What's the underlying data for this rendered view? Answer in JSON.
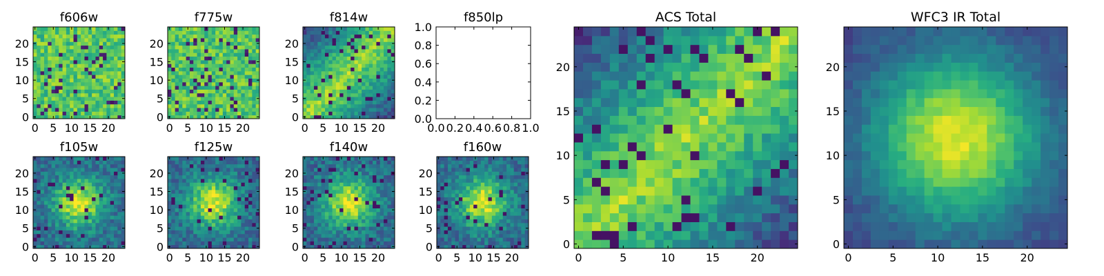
{
  "figure": {
    "description_free": true
  },
  "chart_data": [
    {
      "id": "f606w",
      "type": "heatmap",
      "title": "f606w",
      "x_ticks": [
        "0",
        "5",
        "10",
        "15",
        "20"
      ],
      "y_ticks": [
        "0",
        "5",
        "10",
        "15",
        "20"
      ],
      "grid_size": 25,
      "xlim": [
        0,
        25
      ],
      "ylim": [
        0,
        25
      ],
      "colormap": "viridis",
      "pattern": "flat",
      "seed": 11
    },
    {
      "id": "f775w",
      "type": "heatmap",
      "title": "f775w",
      "x_ticks": [
        "0",
        "5",
        "10",
        "15",
        "20"
      ],
      "y_ticks": [
        "0",
        "5",
        "10",
        "15",
        "20"
      ],
      "grid_size": 25,
      "xlim": [
        0,
        25
      ],
      "ylim": [
        0,
        25
      ],
      "colormap": "viridis",
      "pattern": "flat",
      "seed": 23
    },
    {
      "id": "f814w",
      "type": "heatmap",
      "title": "f814w",
      "x_ticks": [
        "0",
        "5",
        "10",
        "15",
        "20"
      ],
      "y_ticks": [
        "0",
        "5",
        "10",
        "15",
        "20"
      ],
      "grid_size": 25,
      "xlim": [
        0,
        25
      ],
      "ylim": [
        0,
        25
      ],
      "colormap": "viridis",
      "pattern": "diagonal",
      "seed": 37
    },
    {
      "id": "f850lp",
      "type": "empty",
      "title": "f850lp",
      "x_ticks": [
        "0.0",
        "0.2",
        "0.4",
        "0.6",
        "0.8",
        "1.0"
      ],
      "y_ticks": [
        "0.0",
        "0.2",
        "0.4",
        "0.6",
        "0.8",
        "1.0"
      ],
      "xlim": [
        0.0,
        1.0
      ],
      "ylim": [
        0.0,
        1.0
      ]
    },
    {
      "id": "f105w",
      "type": "heatmap",
      "title": "f105w",
      "x_ticks": [
        "0",
        "5",
        "10",
        "15",
        "20"
      ],
      "y_ticks": [
        "0",
        "5",
        "10",
        "15",
        "20"
      ],
      "grid_size": 25,
      "xlim": [
        0,
        25
      ],
      "ylim": [
        0,
        25
      ],
      "colormap": "viridis",
      "pattern": "central-blob",
      "seed": 41
    },
    {
      "id": "f125w",
      "type": "heatmap",
      "title": "f125w",
      "x_ticks": [
        "0",
        "5",
        "10",
        "15",
        "20"
      ],
      "y_ticks": [
        "0",
        "5",
        "10",
        "15",
        "20"
      ],
      "grid_size": 25,
      "xlim": [
        0,
        25
      ],
      "ylim": [
        0,
        25
      ],
      "colormap": "viridis",
      "pattern": "central-blob",
      "seed": 53
    },
    {
      "id": "f140w",
      "type": "heatmap",
      "title": "f140w",
      "x_ticks": [
        "0",
        "5",
        "10",
        "15",
        "20"
      ],
      "y_ticks": [
        "0",
        "5",
        "10",
        "15",
        "20"
      ],
      "grid_size": 25,
      "xlim": [
        0,
        25
      ],
      "ylim": [
        0,
        25
      ],
      "colormap": "viridis",
      "pattern": "central-blob",
      "seed": 67
    },
    {
      "id": "f160w",
      "type": "heatmap",
      "title": "f160w",
      "x_ticks": [
        "0",
        "5",
        "10",
        "15",
        "20"
      ],
      "y_ticks": [
        "0",
        "5",
        "10",
        "15",
        "20"
      ],
      "grid_size": 25,
      "xlim": [
        0,
        25
      ],
      "ylim": [
        0,
        25
      ],
      "colormap": "viridis",
      "pattern": "central-blob",
      "seed": 79
    },
    {
      "id": "acs-total",
      "type": "heatmap",
      "title": "ACS Total",
      "x_ticks": [
        "0",
        "5",
        "10",
        "15",
        "20"
      ],
      "y_ticks": [
        "0",
        "5",
        "10",
        "15",
        "20"
      ],
      "grid_size": 25,
      "xlim": [
        0,
        25
      ],
      "ylim": [
        0,
        25
      ],
      "colormap": "viridis",
      "pattern": "diagonal",
      "seed": 97
    },
    {
      "id": "wfc3-ir-total",
      "type": "heatmap",
      "title": "WFC3 IR Total",
      "x_ticks": [
        "0",
        "5",
        "10",
        "15",
        "20"
      ],
      "y_ticks": [
        "0",
        "5",
        "10",
        "15",
        "20"
      ],
      "grid_size": 25,
      "xlim": [
        0,
        25
      ],
      "ylim": [
        0,
        25
      ],
      "colormap": "viridis",
      "pattern": "central-smooth",
      "seed": 113
    }
  ]
}
